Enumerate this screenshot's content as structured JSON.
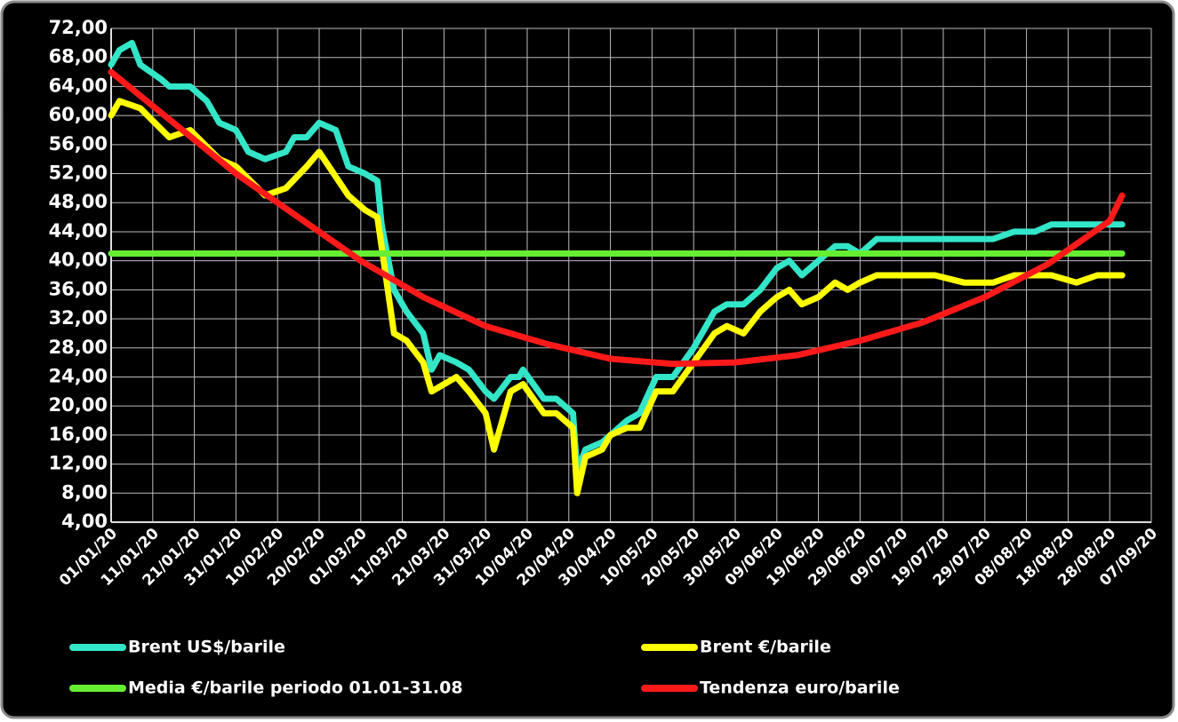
{
  "chart_data": {
    "type": "line",
    "xlim": [
      "01/01/20",
      "07/09/20"
    ],
    "xticks": [
      "01/01/20",
      "11/01/20",
      "21/01/20",
      "31/01/20",
      "10/02/20",
      "20/02/20",
      "01/03/20",
      "11/03/20",
      "21/03/20",
      "31/03/20",
      "10/04/20",
      "20/04/20",
      "30/04/20",
      "10/05/20",
      "20/05/20",
      "30/05/20",
      "09/06/20",
      "19/06/20",
      "29/06/20",
      "09/07/20",
      "19/07/20",
      "29/07/20",
      "08/08/20",
      "18/08/20",
      "28/08/20",
      "07/09/20"
    ],
    "ylim": [
      4,
      72
    ],
    "yticks": [
      {
        "value": 4,
        "label": "4,00"
      },
      {
        "value": 8,
        "label": "8,00"
      },
      {
        "value": 12,
        "label": "12,00"
      },
      {
        "value": 16,
        "label": "16,00"
      },
      {
        "value": 20,
        "label": "20,00"
      },
      {
        "value": 24,
        "label": "24,00"
      },
      {
        "value": 28,
        "label": "28,00"
      },
      {
        "value": 32,
        "label": "32,00"
      },
      {
        "value": 36,
        "label": "36,00"
      },
      {
        "value": 40,
        "label": "40,00"
      },
      {
        "value": 44,
        "label": "44,00"
      },
      {
        "value": 48,
        "label": "48,00"
      },
      {
        "value": 52,
        "label": "52,00"
      },
      {
        "value": 56,
        "label": "56,00"
      },
      {
        "value": 60,
        "label": "60,00"
      },
      {
        "value": 64,
        "label": "64,00"
      },
      {
        "value": 68,
        "label": "68,00"
      },
      {
        "value": 72,
        "label": "72,00"
      }
    ],
    "grid": true,
    "series": [
      {
        "name": "Brent US$/barile",
        "color": "#33e6c8",
        "x": [
          "01/01/20",
          "03/01/20",
          "06/01/20",
          "08/01/20",
          "13/01/20",
          "15/01/20",
          "20/01/20",
          "24/01/20",
          "27/01/20",
          "31/01/20",
          "03/02/20",
          "07/02/20",
          "12/02/20",
          "14/02/20",
          "17/02/20",
          "20/02/20",
          "24/02/20",
          "27/02/20",
          "02/03/20",
          "05/03/20",
          "06/03/20",
          "09/03/20",
          "12/03/20",
          "16/03/20",
          "18/03/20",
          "20/03/20",
          "24/03/20",
          "27/03/20",
          "31/03/20",
          "02/04/20",
          "06/04/20",
          "08/04/20",
          "09/04/20",
          "14/04/20",
          "17/04/20",
          "21/04/20",
          "22/04/20",
          "24/04/20",
          "28/04/20",
          "30/04/20",
          "04/05/20",
          "07/05/20",
          "11/05/20",
          "15/05/20",
          "20/05/20",
          "25/05/20",
          "28/05/20",
          "01/06/20",
          "05/06/20",
          "09/06/20",
          "12/06/20",
          "15/06/20",
          "19/06/20",
          "23/06/20",
          "26/06/20",
          "29/06/20",
          "03/07/20",
          "10/07/20",
          "17/07/20",
          "24/07/20",
          "31/07/20",
          "05/08/20",
          "10/08/20",
          "14/08/20",
          "20/08/20",
          "25/08/20",
          "31/08/20"
        ],
        "values": [
          67,
          69,
          70,
          67,
          65,
          64,
          64,
          62,
          59,
          58,
          55,
          54,
          55,
          57,
          57,
          59,
          58,
          53,
          52,
          51,
          45,
          36,
          33,
          30,
          25,
          27,
          26,
          25,
          22,
          21,
          24,
          24,
          25,
          21,
          21,
          19,
          11,
          14,
          15,
          16,
          18,
          19,
          24,
          24,
          28,
          33,
          34,
          34,
          36,
          39,
          40,
          38,
          40,
          42,
          42,
          41,
          43,
          43,
          43,
          43,
          43,
          44,
          44,
          45,
          45,
          45,
          45
        ]
      },
      {
        "name": "Brent €/barile",
        "color": "#ffff00",
        "x": [
          "01/01/20",
          "03/01/20",
          "08/01/20",
          "15/01/20",
          "20/01/20",
          "27/01/20",
          "31/01/20",
          "07/02/20",
          "12/02/20",
          "17/02/20",
          "20/02/20",
          "27/02/20",
          "02/03/20",
          "05/03/20",
          "09/03/20",
          "12/03/20",
          "16/03/20",
          "18/03/20",
          "24/03/20",
          "27/03/20",
          "31/03/20",
          "02/04/20",
          "06/04/20",
          "09/04/20",
          "14/04/20",
          "17/04/20",
          "21/04/20",
          "22/04/20",
          "24/04/20",
          "28/04/20",
          "30/04/20",
          "04/05/20",
          "07/05/20",
          "11/05/20",
          "15/05/20",
          "20/05/20",
          "25/05/20",
          "28/05/20",
          "01/06/20",
          "05/06/20",
          "09/06/20",
          "12/06/20",
          "15/06/20",
          "19/06/20",
          "23/06/20",
          "26/06/20",
          "29/06/20",
          "03/07/20",
          "10/07/20",
          "17/07/20",
          "24/07/20",
          "31/07/20",
          "05/08/20",
          "10/08/20",
          "14/08/20",
          "20/08/20",
          "25/08/20",
          "31/08/20"
        ],
        "values": [
          60,
          62,
          61,
          57,
          58,
          54,
          53,
          49,
          50,
          53,
          55,
          49,
          47,
          46,
          30,
          29,
          26,
          22,
          24,
          22,
          19,
          14,
          22,
          23,
          19,
          19,
          17,
          8,
          13,
          14,
          16,
          17,
          17,
          22,
          22,
          26,
          30,
          31,
          30,
          33,
          35,
          36,
          34,
          35,
          37,
          36,
          37,
          38,
          38,
          38,
          37,
          37,
          38,
          38,
          38,
          37,
          38,
          38
        ]
      },
      {
        "name": "Media €/barile periodo 01.01-31.08",
        "color": "#66ee33",
        "x": [
          "01/01/20",
          "31/08/20"
        ],
        "values": [
          41,
          41
        ]
      },
      {
        "name": "Tendenza euro/barile",
        "color": "#ff1a1a",
        "x": [
          "01/01/20",
          "16/01/20",
          "31/01/20",
          "15/02/20",
          "01/03/20",
          "16/03/20",
          "31/03/20",
          "15/04/20",
          "30/04/20",
          "15/05/20",
          "30/05/20",
          "14/06/20",
          "29/06/20",
          "14/07/20",
          "29/07/20",
          "13/08/20",
          "28/08/20",
          "31/08/20"
        ],
        "values": [
          66,
          59,
          52,
          46,
          40,
          35,
          31,
          28.5,
          26.5,
          25.8,
          26,
          27,
          29,
          31.5,
          35,
          39.5,
          45.5,
          49
        ]
      }
    ]
  }
}
